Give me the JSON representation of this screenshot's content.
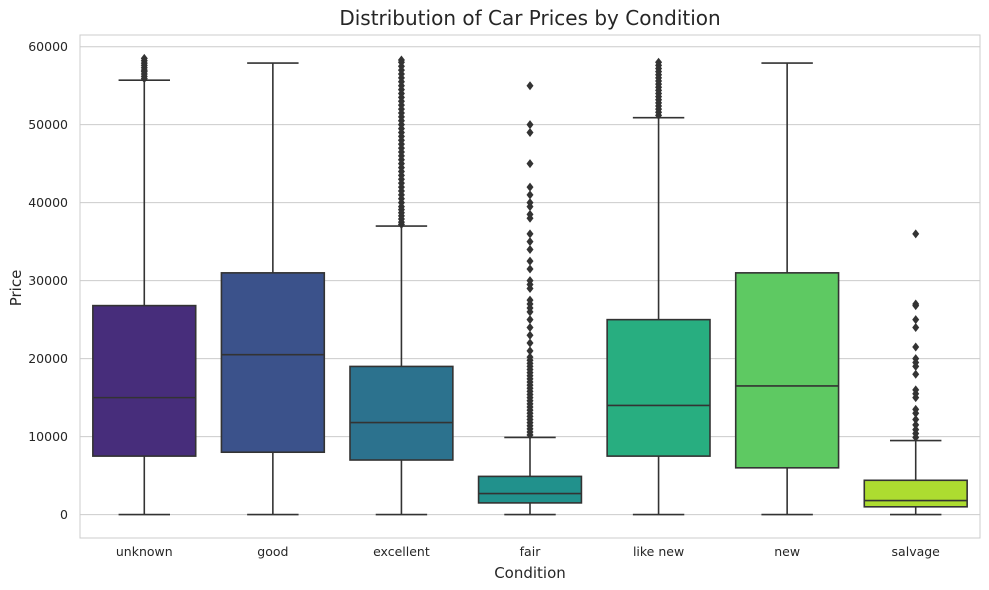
{
  "chart_data": {
    "type": "box",
    "title": "Distribution of Car Prices by Condition",
    "xlabel": "Condition",
    "ylabel": "Price",
    "ylim": [
      -3000,
      61500
    ],
    "yticks": [
      0,
      10000,
      20000,
      30000,
      40000,
      50000,
      60000
    ],
    "ytick_labels": [
      "0",
      "10000",
      "20000",
      "30000",
      "40000",
      "50000",
      "60000"
    ],
    "grid": "horizontal",
    "categories": [
      "unknown",
      "good",
      "excellent",
      "fair",
      "like new",
      "new",
      "salvage"
    ],
    "boxes": [
      {
        "category": "unknown",
        "color": "#472d7b",
        "whisker_low": 0,
        "q1": 7500,
        "median": 15000,
        "q3": 26800,
        "whisker_high": 55700,
        "outliers": [
          55900,
          56200,
          56500,
          56800,
          57000,
          57300,
          57600,
          57900,
          58200,
          58500
        ]
      },
      {
        "category": "good",
        "color": "#3b528b",
        "whisker_low": 0,
        "q1": 8000,
        "median": 20500,
        "q3": 31000,
        "whisker_high": 57900,
        "outliers": []
      },
      {
        "category": "excellent",
        "color": "#2c728e",
        "whisker_low": 0,
        "q1": 7000,
        "median": 11800,
        "q3": 19000,
        "whisker_high": 37000,
        "outliers": [
          37200,
          37500,
          37900,
          38300,
          38700,
          39100,
          39500,
          40000,
          40500,
          41000,
          41500,
          42000,
          42500,
          43000,
          43500,
          44000,
          44500,
          45000,
          45500,
          46000,
          46500,
          47000,
          47500,
          48000,
          48500,
          49000,
          49500,
          50000,
          50500,
          51000,
          51500,
          52000,
          52500,
          53000,
          53500,
          54000,
          54500,
          55000,
          55500,
          56000,
          56500,
          57000,
          57500,
          58000,
          58300
        ]
      },
      {
        "category": "fair",
        "color": "#21918c",
        "whisker_low": 0,
        "q1": 1500,
        "median": 2700,
        "q3": 4900,
        "whisker_high": 9900,
        "outliers": [
          10200,
          10600,
          11000,
          11400,
          11800,
          12200,
          12600,
          13000,
          13400,
          13800,
          14200,
          14600,
          15000,
          15400,
          15800,
          16200,
          16600,
          17000,
          17400,
          17800,
          18200,
          18600,
          19000,
          19400,
          19800,
          20200,
          21000,
          22000,
          23000,
          24000,
          25000,
          26000,
          26500,
          27000,
          27500,
          29000,
          29500,
          30000,
          31500,
          32500,
          34000,
          35000,
          36000,
          38000,
          38500,
          39500,
          40000,
          41000,
          42000,
          45000,
          49000,
          50000,
          55000
        ]
      },
      {
        "category": "like new",
        "color": "#28ae80",
        "whisker_low": 0,
        "q1": 7500,
        "median": 14000,
        "q3": 25000,
        "whisker_high": 50900,
        "outliers": [
          51200,
          51600,
          52000,
          52400,
          52800,
          53200,
          53600,
          54000,
          54400,
          54800,
          55200,
          55600,
          56000,
          56400,
          56800,
          57200,
          57600,
          58000
        ]
      },
      {
        "category": "new",
        "color": "#5ec962",
        "whisker_low": 0,
        "q1": 6000,
        "median": 16500,
        "q3": 31000,
        "whisker_high": 57900,
        "outliers": []
      },
      {
        "category": "salvage",
        "color": "#addc30",
        "whisker_low": 0,
        "q1": 1000,
        "median": 1800,
        "q3": 4400,
        "whisker_high": 9500,
        "outliers": [
          9900,
          10400,
          10900,
          11500,
          12200,
          13000,
          13500,
          15000,
          15500,
          16000,
          18000,
          19000,
          19500,
          20000,
          21500,
          24000,
          25000,
          26800,
          27000,
          36000
        ]
      }
    ]
  }
}
